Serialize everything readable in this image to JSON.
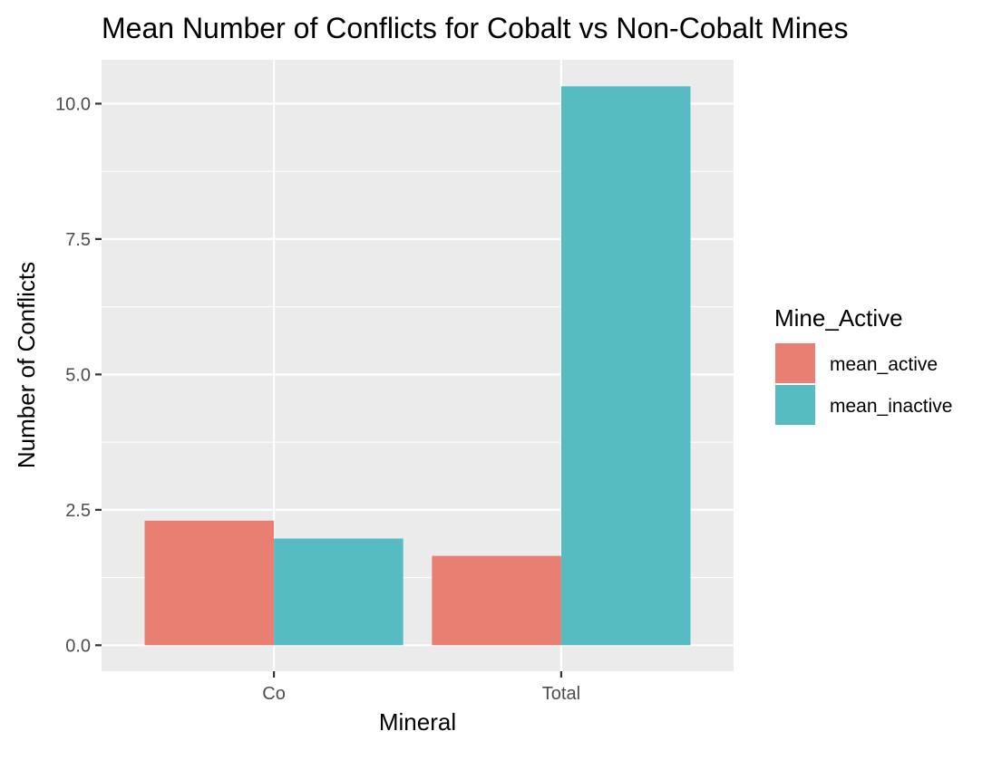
{
  "chart_data": {
    "type": "bar",
    "title": "Mean Number of Conflicts for Cobalt vs Non-Cobalt Mines",
    "xlabel": "Mineral",
    "ylabel": "Number of Conflicts",
    "categories": [
      "Co",
      "Total"
    ],
    "series": [
      {
        "name": "mean_active",
        "values": [
          2.3,
          1.65
        ],
        "color": "#E87F72"
      },
      {
        "name": "mean_inactive",
        "values": [
          1.97,
          10.32
        ],
        "color": "#56BCC2"
      }
    ],
    "ylim": [
      -0.48,
      10.81
    ],
    "yticks": [
      0.0,
      2.5,
      5.0,
      7.5,
      10.0
    ],
    "ytick_labels": [
      "0.0",
      "2.5",
      "5.0",
      "7.5",
      "10.0"
    ],
    "grid": true,
    "legend": {
      "title": "Mine_Active",
      "position": "right"
    },
    "colors": {
      "panel_bg": "#EBEBEB",
      "grid": "#FFFFFF",
      "text": "#000000",
      "tick_text": "#4D4D4D"
    }
  }
}
